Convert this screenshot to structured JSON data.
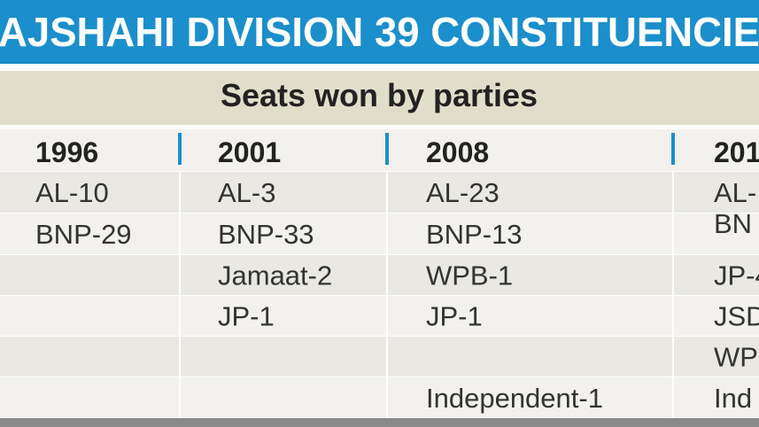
{
  "header": {
    "title": "AJSHAHI DIVISION 39 CONSTITUENCIE",
    "subtitle": "Seats won by parties"
  },
  "table": {
    "columns": [
      {
        "year": "1996",
        "cells": [
          "AL-10",
          "BNP-29",
          null,
          null,
          null,
          null
        ]
      },
      {
        "year": "2001",
        "cells": [
          "AL-3",
          "BNP-33",
          "Jamaat-2",
          "JP-1",
          null,
          null
        ]
      },
      {
        "year": "2008",
        "cells": [
          "AL-23",
          "BNP-13",
          "WPB-1",
          "JP-1",
          null,
          "Independent-1"
        ]
      },
      {
        "year": "201",
        "cells": [
          "AL-",
          "BN",
          "JP-4",
          "JSD",
          "WP",
          "Ind"
        ]
      }
    ]
  }
}
